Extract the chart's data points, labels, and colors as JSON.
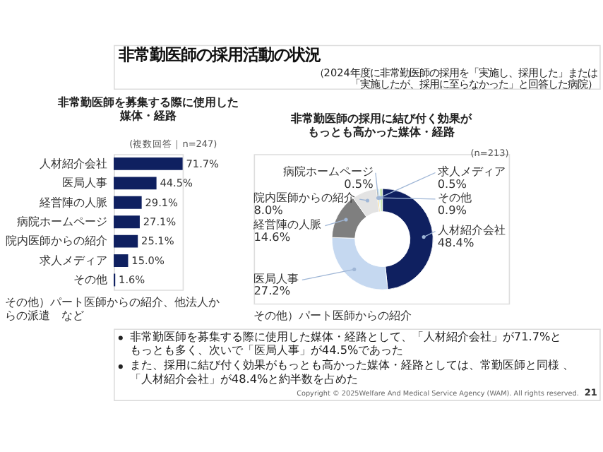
{
  "chart_data": [
    {
      "type": "bar",
      "orientation": "horizontal",
      "title": "非常勤医師を募集する際に使用した媒体・経路",
      "categories": [
        "人材紹介会社",
        "医局人事",
        "経営陣の人脈",
        "病院ホームページ",
        "院内医師からの紹介",
        "求人メディア",
        "その他"
      ],
      "values": [
        71.7,
        44.5,
        29.1,
        27.1,
        25.1,
        15.0,
        1.6
      ],
      "value_labels": [
        "71.7%",
        "44.5%",
        "29.1%",
        "27.1%",
        "25.1%",
        "15.0%",
        "1.6%"
      ],
      "color": "#0f2060",
      "annotations": [
        "非常勤医師の採用活動の状況",
        "（2024年度に非常勤医師の採用を「実施し、採用した」または「実施したが、採用に至らなかった」と回答した病院）",
        "(複数回答｜n=247)",
        "その他）パート医師からの紹介、他法人からの派遣　など",
        "非常勤医師を募集する際に使用した媒体・経路として、「人材紹介会社」が71.7%ともっとも多く、次いで「医局人事」が44.5%であった",
        "また、採用に結び付く効果がもっとも高かった媒体・経路としては、常勤医師と同様 、「人材紹介会社」が48.4%と約半数を占めた"
      ]
    },
    {
      "type": "donut",
      "title": "非常勤医師の採用に結び付く効果がもっとも高かった媒体・経路",
      "categories": [
        "人材紹介会社",
        "医局人事",
        "経営陣の人脈",
        "院内医師からの紹介",
        "病院ホームページ",
        "求人メディア",
        "その他"
      ],
      "values": [
        48.4,
        27.2,
        14.6,
        8.0,
        0.5,
        0.5,
        0.9
      ],
      "value_labels": [
        "48.4%",
        "27.2%",
        "14.6%",
        "8.0%",
        "0.5%",
        "0.5%",
        "0.9%"
      ],
      "colors": [
        "#0f2060",
        "#c5d8f0",
        "#7f7f7f",
        "#e3e3e3",
        "#f2c14e",
        "#bde3f5",
        "#c8e6b0"
      ],
      "annotations": [
        "(n=213)",
        "その他）パート医師からの紹介",
        "Copyright © 2025Welfare And Medical Service Agency (WAM). All rights reserved.",
        "21"
      ]
    }
  ]
}
